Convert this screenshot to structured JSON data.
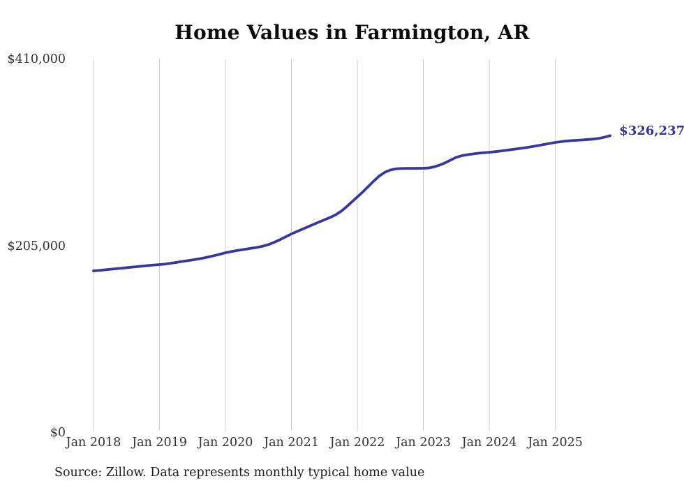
{
  "title": "Home Values in Farmington, AR",
  "source_note": "Source: Zillow. Data represents monthly typical home value",
  "end_label": "$326,237",
  "colors": {
    "line": "#37379e",
    "grid": "#cccccc",
    "axis_text": "#333333",
    "title_text": "#0a0a0a",
    "end_label_text": "#32329b",
    "background": "#ffffff"
  },
  "chart_data": {
    "type": "line",
    "title": "Home Values in Farmington, AR",
    "xlabel": "",
    "ylabel": "",
    "ylim": [
      0,
      410000
    ],
    "grid": "vertical-only",
    "legend": "none",
    "y_ticks": [
      {
        "label": "$410,000",
        "value": 410000
      },
      {
        "label": "$205,000",
        "value": 205000
      },
      {
        "label": "$0",
        "value": 0
      }
    ],
    "x_ticks": [
      {
        "label": "Jan 2018",
        "month_index": 0
      },
      {
        "label": "Jan 2019",
        "month_index": 12
      },
      {
        "label": "Jan 2020",
        "month_index": 24
      },
      {
        "label": "Jan 2021",
        "month_index": 36
      },
      {
        "label": "Jan 2022",
        "month_index": 48
      },
      {
        "label": "Jan 2023",
        "month_index": 60
      },
      {
        "label": "Jan 2024",
        "month_index": 72
      },
      {
        "label": "Jan 2025",
        "month_index": 84
      }
    ],
    "series": [
      {
        "name": "Monthly typical home value",
        "final_value": 326237,
        "final_value_label": "$326,237",
        "x": [
          "2018-01",
          "2018-02",
          "2018-03",
          "2018-04",
          "2018-05",
          "2018-06",
          "2018-07",
          "2018-08",
          "2018-09",
          "2018-10",
          "2018-11",
          "2018-12",
          "2019-01",
          "2019-02",
          "2019-03",
          "2019-04",
          "2019-05",
          "2019-06",
          "2019-07",
          "2019-08",
          "2019-09",
          "2019-10",
          "2019-11",
          "2019-12",
          "2020-01",
          "2020-02",
          "2020-03",
          "2020-04",
          "2020-05",
          "2020-06",
          "2020-07",
          "2020-08",
          "2020-09",
          "2020-10",
          "2020-11",
          "2020-12",
          "2021-01",
          "2021-02",
          "2021-03",
          "2021-04",
          "2021-05",
          "2021-06",
          "2021-07",
          "2021-08",
          "2021-09",
          "2021-10",
          "2021-11",
          "2021-12",
          "2022-01",
          "2022-02",
          "2022-03",
          "2022-04",
          "2022-05",
          "2022-06",
          "2022-07",
          "2022-08",
          "2022-09",
          "2022-10",
          "2022-11",
          "2022-12",
          "2023-01",
          "2023-02",
          "2023-03",
          "2023-04",
          "2023-05",
          "2023-06",
          "2023-07",
          "2023-08",
          "2023-09",
          "2023-10",
          "2023-11",
          "2023-12",
          "2024-01",
          "2024-02",
          "2024-03",
          "2024-04",
          "2024-05",
          "2024-06",
          "2024-07",
          "2024-08",
          "2024-09",
          "2024-10",
          "2024-11",
          "2024-12",
          "2025-01",
          "2025-02",
          "2025-03",
          "2025-04",
          "2025-05",
          "2025-06",
          "2025-07",
          "2025-08",
          "2025-09",
          "2025-10",
          "2025-11"
        ],
        "values": [
          177800,
          178300,
          178900,
          179500,
          180100,
          180700,
          181300,
          181900,
          182500,
          183100,
          183700,
          184200,
          184700,
          185300,
          186100,
          187000,
          188000,
          188900,
          189800,
          190800,
          191900,
          193200,
          194600,
          196100,
          197700,
          198900,
          200000,
          201000,
          201900,
          202900,
          203900,
          205200,
          207000,
          209500,
          212300,
          215300,
          218400,
          221000,
          223600,
          226200,
          228800,
          231300,
          233800,
          236300,
          239200,
          243000,
          248000,
          253500,
          259000,
          264500,
          270500,
          276500,
          282000,
          286000,
          288500,
          289800,
          290200,
          290300,
          290300,
          290400,
          290500,
          290800,
          292000,
          294000,
          296500,
          299500,
          302500,
          304200,
          305300,
          306200,
          306900,
          307500,
          308000,
          308600,
          309300,
          310100,
          310900,
          311700,
          312500,
          313400,
          314400,
          315500,
          316600,
          317700,
          318800,
          319600,
          320300,
          320800,
          321200,
          321600,
          322000,
          322500,
          323300,
          324600,
          326237
        ]
      }
    ]
  }
}
